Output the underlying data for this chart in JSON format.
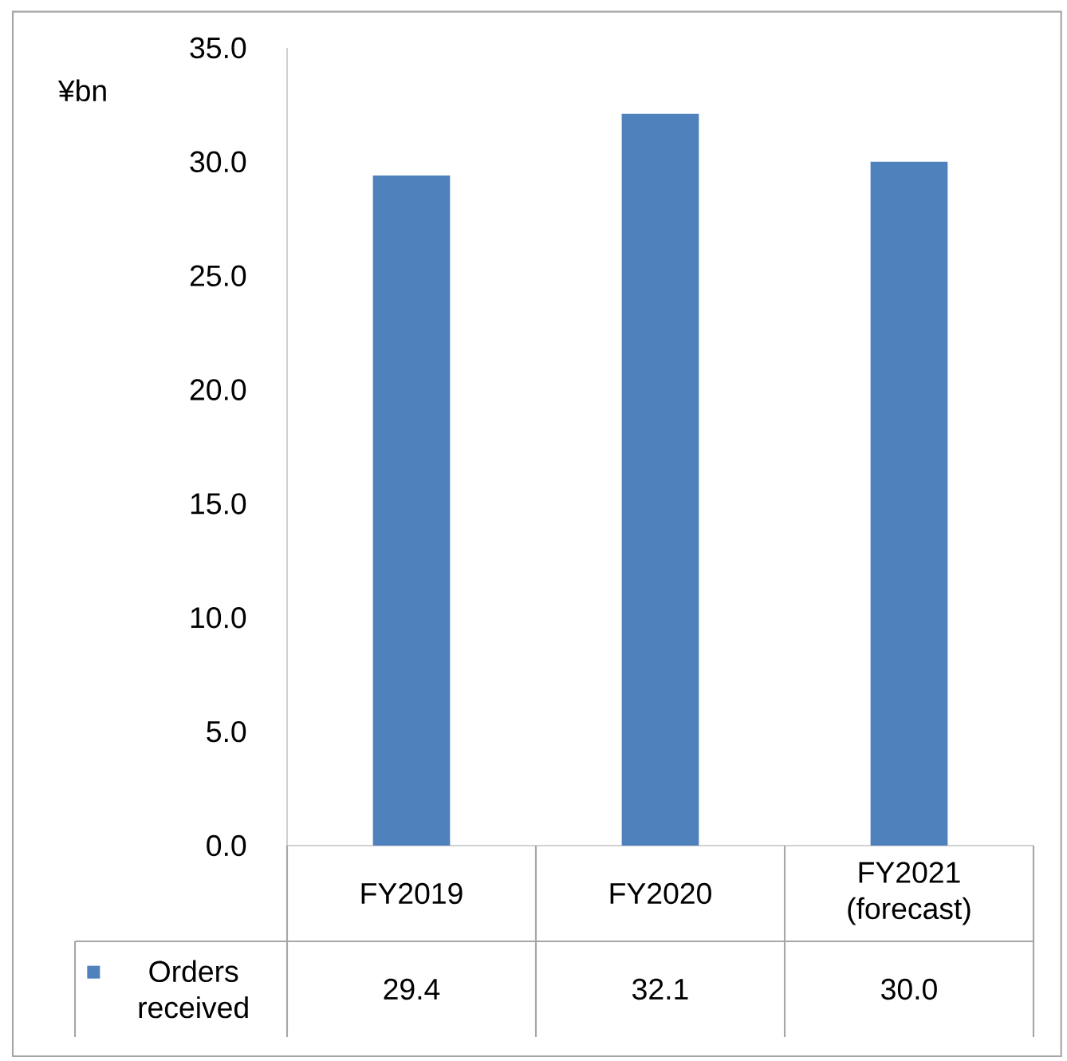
{
  "chart_data": {
    "type": "bar",
    "ylabel": "¥bn",
    "categories": [
      "FY2019",
      "FY2020",
      "FY2021 (forecast)"
    ],
    "series": [
      {
        "name": "Orders received",
        "color": "#4f81bd",
        "values": [
          29.4,
          32.1,
          30.0
        ],
        "value_labels": [
          "29.4",
          "32.1",
          "30.0"
        ]
      }
    ],
    "ylim": [
      0,
      35
    ],
    "yticks": [
      {
        "value": 0,
        "label": "0.0"
      },
      {
        "value": 5,
        "label": "5.0"
      },
      {
        "value": 10,
        "label": "10.0"
      },
      {
        "value": 15,
        "label": "15.0"
      },
      {
        "value": 20,
        "label": "20.0"
      },
      {
        "value": 25,
        "label": "25.0"
      },
      {
        "value": 30,
        "label": "30.0"
      },
      {
        "value": 35,
        "label": "35.0"
      }
    ],
    "legend": "bottom left"
  }
}
